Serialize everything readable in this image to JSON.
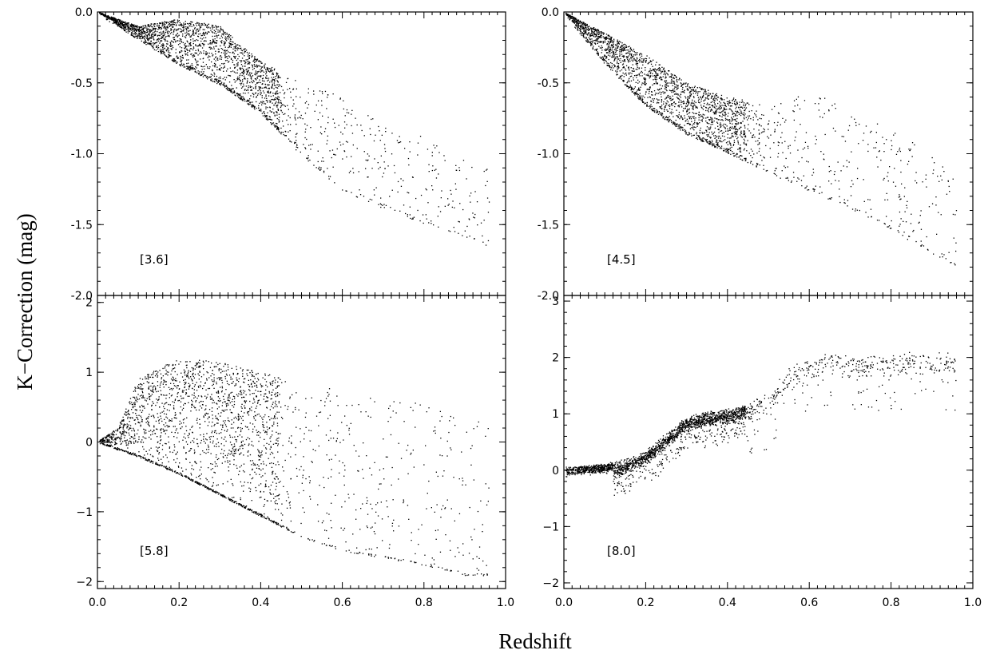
{
  "figure": {
    "xlabel": "Redshift",
    "ylabel": "K−Correction (mag)"
  },
  "chart_data": [
    {
      "type": "scatter",
      "panel_label": "[3.6]",
      "xlim": [
        0.0,
        1.0
      ],
      "ylim": [
        -2.0,
        0.0
      ],
      "xticks": [
        "0.0",
        "0.2",
        "0.4",
        "0.6",
        "0.8",
        "1.0"
      ],
      "yticks": [
        "0.0",
        "-0.5",
        "-1.0",
        "-1.5",
        "-2.0"
      ],
      "envelope_lower": [
        [
          0.0,
          0.0
        ],
        [
          0.1,
          -0.18
        ],
        [
          0.2,
          -0.36
        ],
        [
          0.3,
          -0.5
        ],
        [
          0.4,
          -0.7
        ],
        [
          0.5,
          -1.0
        ],
        [
          0.6,
          -1.25
        ],
        [
          0.7,
          -1.37
        ],
        [
          0.8,
          -1.48
        ],
        [
          0.95,
          -1.63
        ]
      ],
      "envelope_upper": [
        [
          0.0,
          0.0
        ],
        [
          0.1,
          -0.1
        ],
        [
          0.2,
          -0.05
        ],
        [
          0.3,
          -0.1
        ],
        [
          0.4,
          -0.35
        ],
        [
          0.5,
          -0.5
        ],
        [
          0.6,
          -0.6
        ],
        [
          0.7,
          -0.8
        ],
        [
          0.85,
          -0.92
        ],
        [
          0.95,
          -1.1
        ]
      ]
    },
    {
      "type": "scatter",
      "panel_label": "[4.5]",
      "xlim": [
        0.0,
        1.0
      ],
      "ylim": [
        -2.0,
        0.0
      ],
      "xticks": [
        "0.0",
        "0.2",
        "0.4",
        "0.6",
        "0.8",
        "1.0"
      ],
      "yticks": [
        "0.0",
        "-0.5",
        "-1.0",
        "-1.5",
        "-2.0"
      ],
      "envelope_lower": [
        [
          0.0,
          0.0
        ],
        [
          0.1,
          -0.35
        ],
        [
          0.2,
          -0.65
        ],
        [
          0.3,
          -0.85
        ],
        [
          0.4,
          -0.98
        ],
        [
          0.5,
          -1.12
        ],
        [
          0.6,
          -1.25
        ],
        [
          0.7,
          -1.37
        ],
        [
          0.8,
          -1.52
        ],
        [
          0.95,
          -1.78
        ]
      ],
      "envelope_upper": [
        [
          0.0,
          0.0
        ],
        [
          0.1,
          -0.15
        ],
        [
          0.2,
          -0.3
        ],
        [
          0.3,
          -0.5
        ],
        [
          0.4,
          -0.6
        ],
        [
          0.5,
          -0.65
        ],
        [
          0.6,
          -0.55
        ],
        [
          0.7,
          -0.7
        ],
        [
          0.85,
          -0.9
        ],
        [
          0.95,
          -1.15
        ]
      ]
    },
    {
      "type": "scatter",
      "panel_label": "[5.8]",
      "xlim": [
        0.0,
        1.0
      ],
      "ylim": [
        -2.1,
        2.1
      ],
      "xticks": [
        "0.0",
        "0.2",
        "0.4",
        "0.6",
        "0.8",
        "1.0"
      ],
      "yticks": [
        "2",
        "1",
        "0",
        "−1",
        "−2"
      ],
      "envelope_lower": [
        [
          0.0,
          0.0
        ],
        [
          0.05,
          -0.1
        ],
        [
          0.1,
          -0.2
        ],
        [
          0.2,
          -0.45
        ],
        [
          0.3,
          -0.75
        ],
        [
          0.4,
          -1.05
        ],
        [
          0.5,
          -1.35
        ],
        [
          0.6,
          -1.55
        ],
        [
          0.7,
          -1.65
        ],
        [
          0.8,
          -1.75
        ],
        [
          0.9,
          -1.9
        ]
      ],
      "envelope_upper": [
        [
          0.0,
          0.0
        ],
        [
          0.05,
          0.2
        ],
        [
          0.1,
          0.9
        ],
        [
          0.2,
          1.2
        ],
        [
          0.3,
          1.15
        ],
        [
          0.4,
          1.0
        ],
        [
          0.5,
          0.85
        ],
        [
          0.6,
          0.75
        ],
        [
          0.7,
          0.65
        ],
        [
          0.8,
          0.55
        ],
        [
          0.9,
          0.45
        ]
      ]
    },
    {
      "type": "scatter",
      "panel_label": "[8.0]",
      "xlim": [
        0.0,
        1.0
      ],
      "ylim": [
        -2.1,
        3.1
      ],
      "xticks": [
        "0.0",
        "0.2",
        "0.4",
        "0.6",
        "0.8",
        "1.0"
      ],
      "yticks": [
        "3",
        "2",
        "1",
        "0",
        "−1",
        "−2"
      ],
      "trend": [
        [
          0.0,
          0.0
        ],
        [
          0.1,
          0.05
        ],
        [
          0.15,
          0.15
        ],
        [
          0.2,
          0.3
        ],
        [
          0.25,
          0.6
        ],
        [
          0.3,
          0.9
        ],
        [
          0.35,
          1.0
        ],
        [
          0.42,
          1.05
        ],
        [
          0.5,
          1.3
        ],
        [
          0.55,
          1.8
        ],
        [
          0.6,
          1.95
        ],
        [
          0.65,
          2.05
        ],
        [
          0.72,
          1.95
        ],
        [
          0.85,
          2.05
        ]
      ]
    }
  ]
}
